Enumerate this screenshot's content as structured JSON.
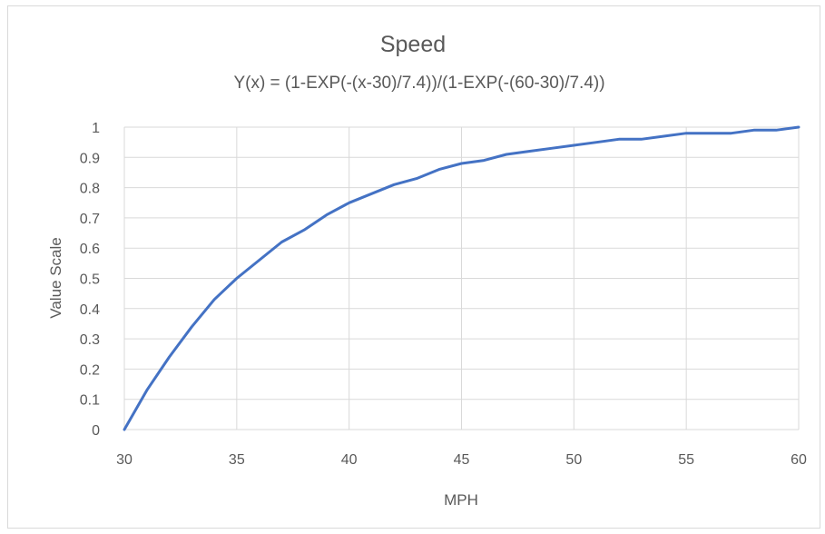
{
  "chart_data": {
    "type": "line",
    "title": "Speed",
    "subtitle": "Y(x) = (1-EXP(-(x-30)/7.4))/(1-EXP(-(60-30)/7.4))",
    "xlabel": "MPH",
    "ylabel": "Value Scale",
    "xlim": [
      30,
      60
    ],
    "ylim": [
      0,
      1
    ],
    "x_ticks": [
      "30",
      "35",
      "40",
      "45",
      "50",
      "55",
      "60"
    ],
    "y_ticks": [
      "0",
      "0.1",
      "0.2",
      "0.3",
      "0.4",
      "0.5",
      "0.6",
      "0.7",
      "0.8",
      "0.9",
      "1"
    ],
    "grid": true,
    "legend": "none",
    "series_color": "#4472c4",
    "series": [
      {
        "x": [
          30,
          31,
          32,
          33,
          34,
          35,
          36,
          37,
          38,
          39,
          40,
          41,
          42,
          43,
          44,
          45,
          46,
          47,
          48,
          49,
          50,
          51,
          52,
          53,
          54,
          55,
          56,
          57,
          58,
          59,
          60
        ],
        "values": [
          0,
          0.13,
          0.24,
          0.34,
          0.43,
          0.5,
          0.56,
          0.62,
          0.66,
          0.71,
          0.75,
          0.78,
          0.81,
          0.83,
          0.86,
          0.88,
          0.89,
          0.91,
          0.92,
          0.93,
          0.94,
          0.95,
          0.96,
          0.96,
          0.97,
          0.98,
          0.98,
          0.98,
          0.99,
          0.99,
          1.0
        ]
      }
    ]
  }
}
